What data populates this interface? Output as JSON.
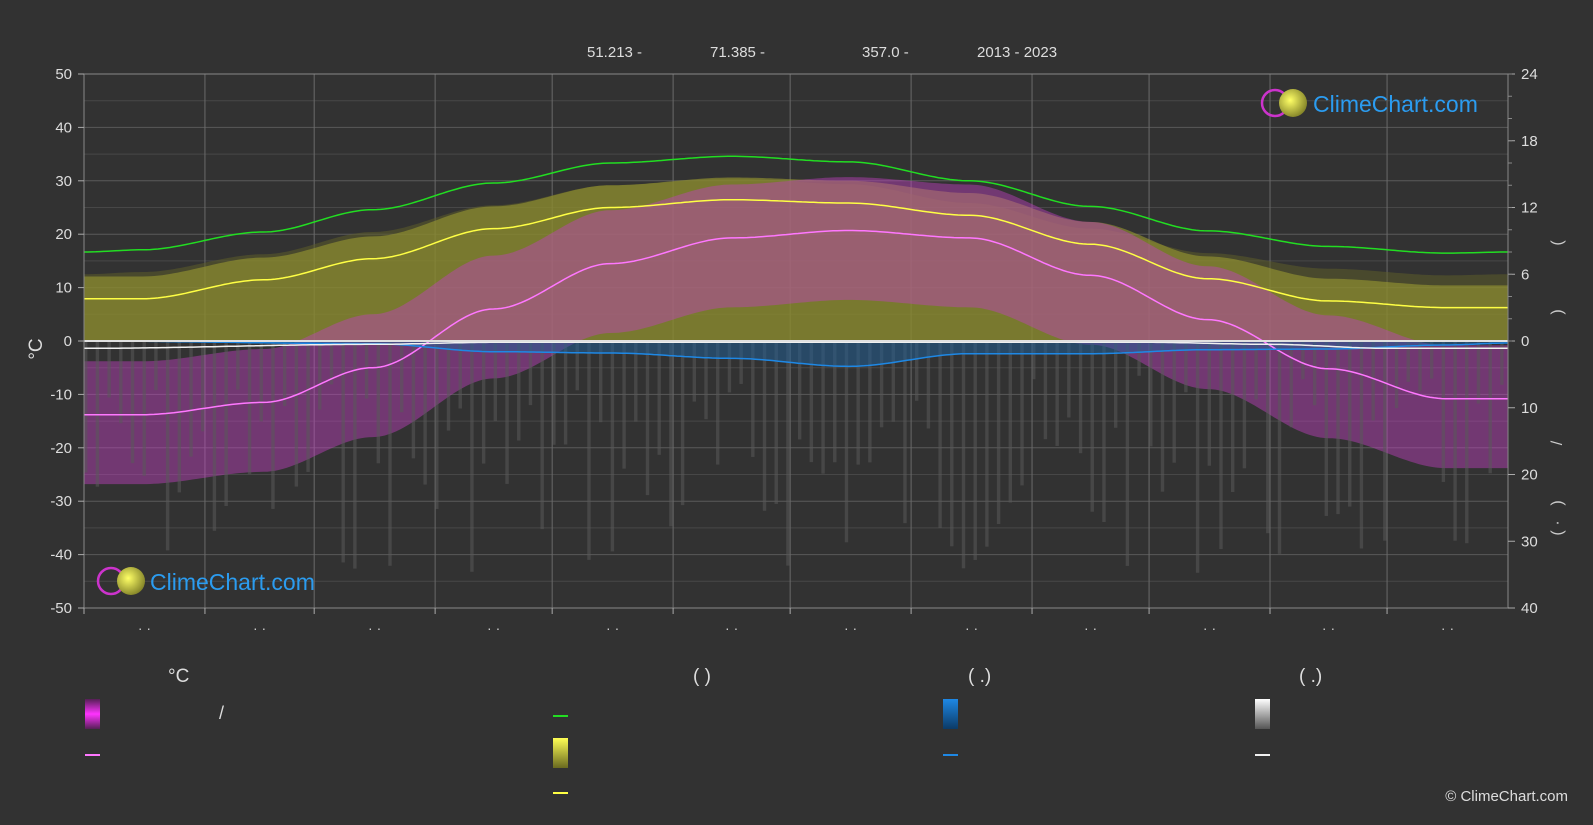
{
  "header": {
    "lat": "51.213 -",
    "lon": "71.385 -",
    "elevation": "357.0 -",
    "years": "2013 - 2023"
  },
  "brand": {
    "logo_text": "ClimeChart.com",
    "copyright": "© ClimeChart.com"
  },
  "legend": {
    "temp_unit": "°C",
    "sun_head": "(          )",
    "rain_head": "(   .)",
    "snow_head": "(   .)",
    "slash": "/"
  },
  "colors": {
    "background": "#323232",
    "temp_band": "#e43fe4",
    "temp_mean": "#ff77ff",
    "daylight": "#22dd22",
    "sunshine_band": "#c8c83a",
    "sunshine_mean": "#ffff44",
    "rain": "#1e88e5",
    "snow": "#f0f0f0"
  },
  "chart_data": {
    "type": "area",
    "left_axis": {
      "label": "°C",
      "ylim": [
        -50,
        50
      ],
      "ticks": [
        "50",
        "40",
        "30",
        "20",
        "10",
        "0",
        "-10",
        "-20",
        "-30",
        "-40",
        "-50"
      ]
    },
    "right_axis_top": {
      "label": "",
      "ylim": [
        0,
        24
      ],
      "ticks": [
        "24",
        "18",
        "12",
        "6",
        "0"
      ]
    },
    "right_axis_bottom": {
      "ylim": [
        0,
        40
      ],
      "ticks": [
        "10",
        "20",
        "30",
        "40"
      ]
    },
    "months": [
      "· ·",
      "· ·",
      "· ·",
      "· ·",
      "· ·",
      "· ·",
      "· ·",
      "· ·",
      "· ·",
      "· ·",
      "· ·",
      "· ·"
    ],
    "x_month_ticks": [
      0,
      31,
      59,
      90,
      120,
      151,
      181,
      212,
      243,
      273,
      304,
      334,
      365
    ],
    "temp_mean_c": [
      [
        0,
        -13.8
      ],
      [
        15,
        -13.8
      ],
      [
        46,
        -11.5
      ],
      [
        74,
        -5
      ],
      [
        105,
        6
      ],
      [
        135,
        14.5
      ],
      [
        166,
        19.3
      ],
      [
        196,
        20.7
      ],
      [
        227,
        19.3
      ],
      [
        258,
        12.3
      ],
      [
        288,
        4
      ],
      [
        319,
        -5.2
      ],
      [
        349,
        -10.8
      ],
      [
        365,
        -10.8
      ]
    ],
    "daylight_h": [
      [
        0,
        8
      ],
      [
        15,
        8.2
      ],
      [
        46,
        9.8
      ],
      [
        74,
        11.8
      ],
      [
        105,
        14.2
      ],
      [
        135,
        16
      ],
      [
        166,
        16.6
      ],
      [
        196,
        16.1
      ],
      [
        227,
        14.4
      ],
      [
        258,
        12.1
      ],
      [
        288,
        9.9
      ],
      [
        319,
        8.5
      ],
      [
        349,
        7.9
      ],
      [
        365,
        8
      ]
    ],
    "sunshine_h": [
      [
        0,
        3.8
      ],
      [
        15,
        3.8
      ],
      [
        46,
        5.5
      ],
      [
        74,
        7.4
      ],
      [
        105,
        10.1
      ],
      [
        135,
        12
      ],
      [
        166,
        12.7
      ],
      [
        196,
        12.4
      ],
      [
        227,
        11.3
      ],
      [
        258,
        8.7
      ],
      [
        288,
        5.6
      ],
      [
        319,
        3.6
      ],
      [
        349,
        3
      ],
      [
        365,
        3
      ]
    ],
    "rain_mm": [
      [
        0,
        0
      ],
      [
        74,
        0.4
      ],
      [
        105,
        1.6
      ],
      [
        135,
        1.8
      ],
      [
        166,
        2.6
      ],
      [
        196,
        3.8
      ],
      [
        227,
        1.9
      ],
      [
        258,
        1.9
      ],
      [
        288,
        1.3
      ],
      [
        319,
        1.2
      ],
      [
        349,
        0.6
      ],
      [
        365,
        0.3
      ]
    ],
    "snow_mm": [
      [
        0,
        1.1
      ],
      [
        74,
        0.5
      ],
      [
        105,
        0.2
      ],
      [
        273,
        0.2
      ],
      [
        304,
        0.5
      ],
      [
        334,
        1.1
      ],
      [
        365,
        1.1
      ]
    ]
  }
}
